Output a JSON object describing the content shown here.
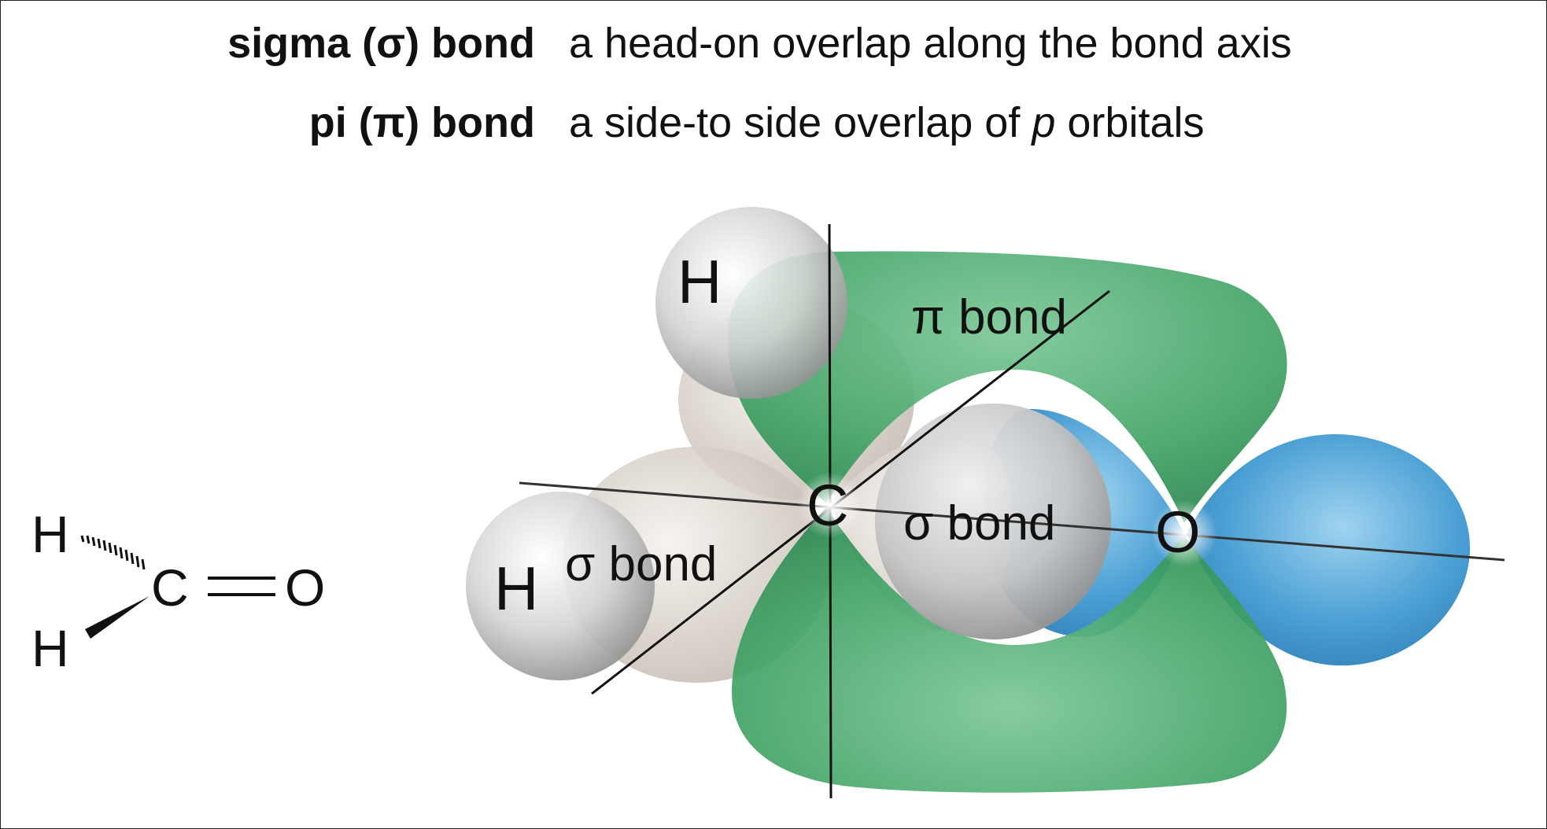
{
  "definitions": [
    {
      "term": "sigma (σ) bond",
      "description_prefix": "a head-on overlap along the bond axis",
      "description_italic": "",
      "description_suffix": ""
    },
    {
      "term": "pi (π) bond",
      "description_prefix": "a side-to side overlap of ",
      "description_italic": "p",
      "description_suffix": " orbitals"
    }
  ],
  "structure": {
    "h_top": "H",
    "h_bottom": "H",
    "carbon": "C",
    "oxygen": "O"
  },
  "model": {
    "h_upper": "H",
    "h_lower": "H",
    "carbon": "C",
    "oxygen": "O",
    "pi_label": "π bond",
    "sigma_co_label": "σ bond",
    "sigma_ch_label": "σ bond"
  },
  "colors": {
    "pi_orbital": "#3fa064",
    "oxygen_lobe": "#4a9fd4",
    "hybrid_lobe": "#ddd5cc",
    "hydrogen_sphere": "#c9c9c9"
  }
}
